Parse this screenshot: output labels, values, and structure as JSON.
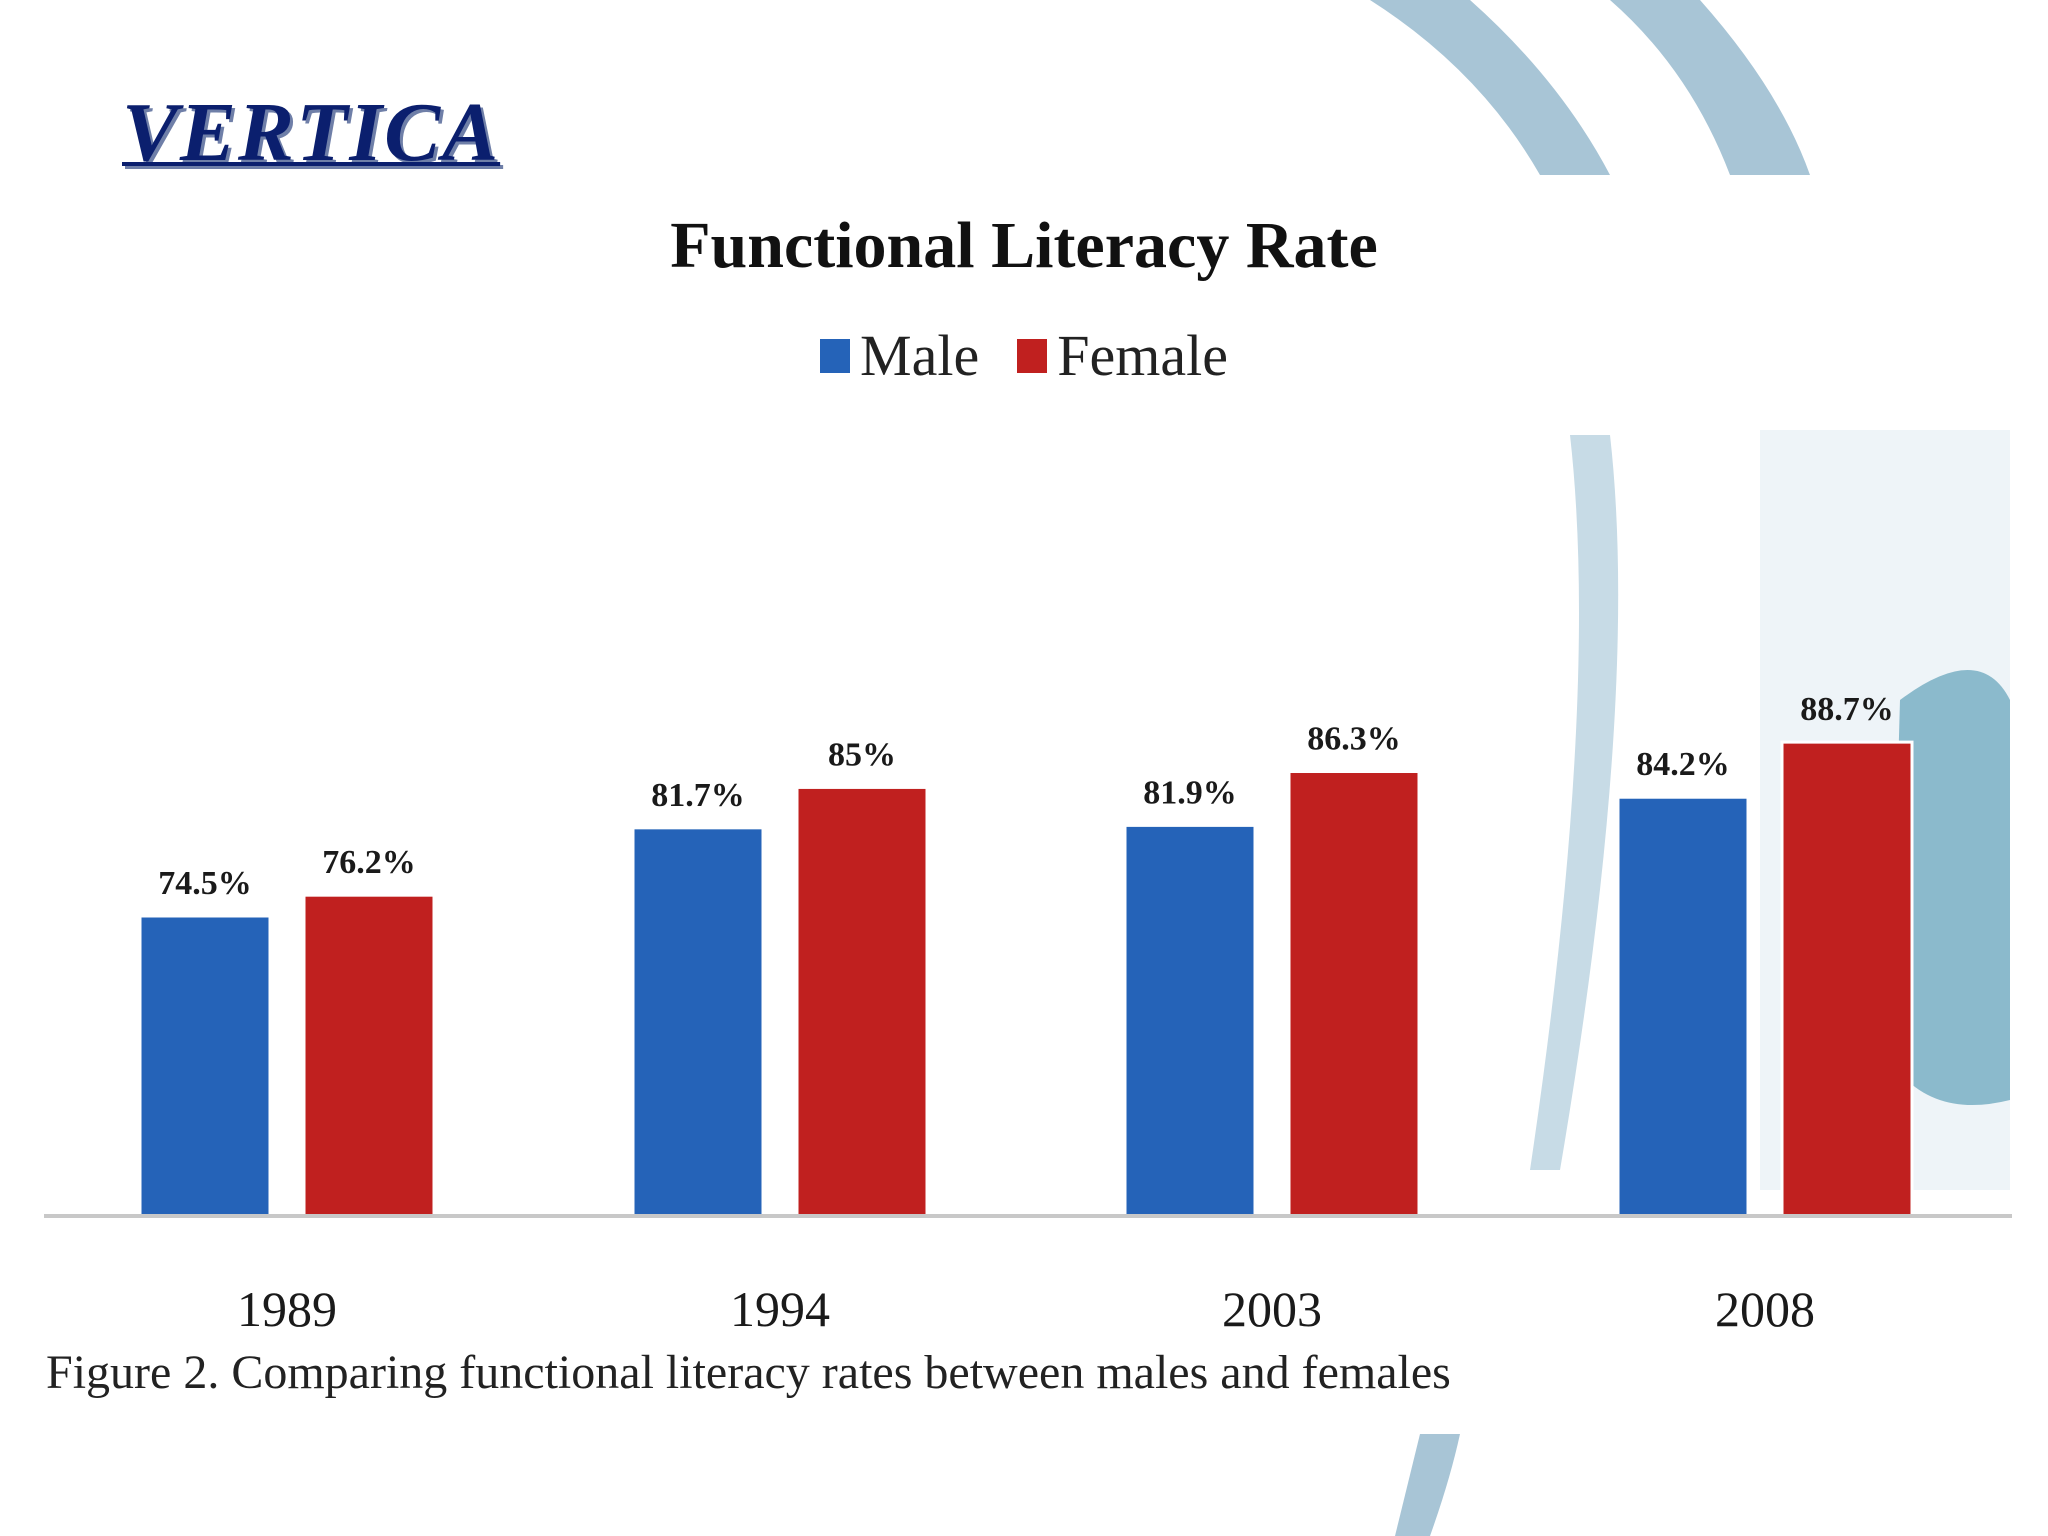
{
  "logo": "VERTICA",
  "caption": "Figure 2. Comparing functional literacy rates between males and females",
  "colors": {
    "male": "#2563b8",
    "female": "#c0201f",
    "accent_deco": "#9fbfd3"
  },
  "chart_data": {
    "type": "bar",
    "title": "Functional Literacy Rate",
    "categories": [
      "1989",
      "1994",
      "2003",
      "2008"
    ],
    "series": [
      {
        "name": "Male",
        "values": [
          74.5,
          81.7,
          81.9,
          84.2
        ],
        "labels": [
          "74.5%",
          "81.7%",
          "81.9%",
          "84.2%"
        ]
      },
      {
        "name": "Female",
        "values": [
          76.2,
          85,
          86.3,
          88.7
        ],
        "labels": [
          "76.2%",
          "85%",
          "86.3%",
          "88.7%"
        ]
      }
    ],
    "legend": "top-center",
    "ylim": [
      50,
      90
    ],
    "grid": false
  }
}
